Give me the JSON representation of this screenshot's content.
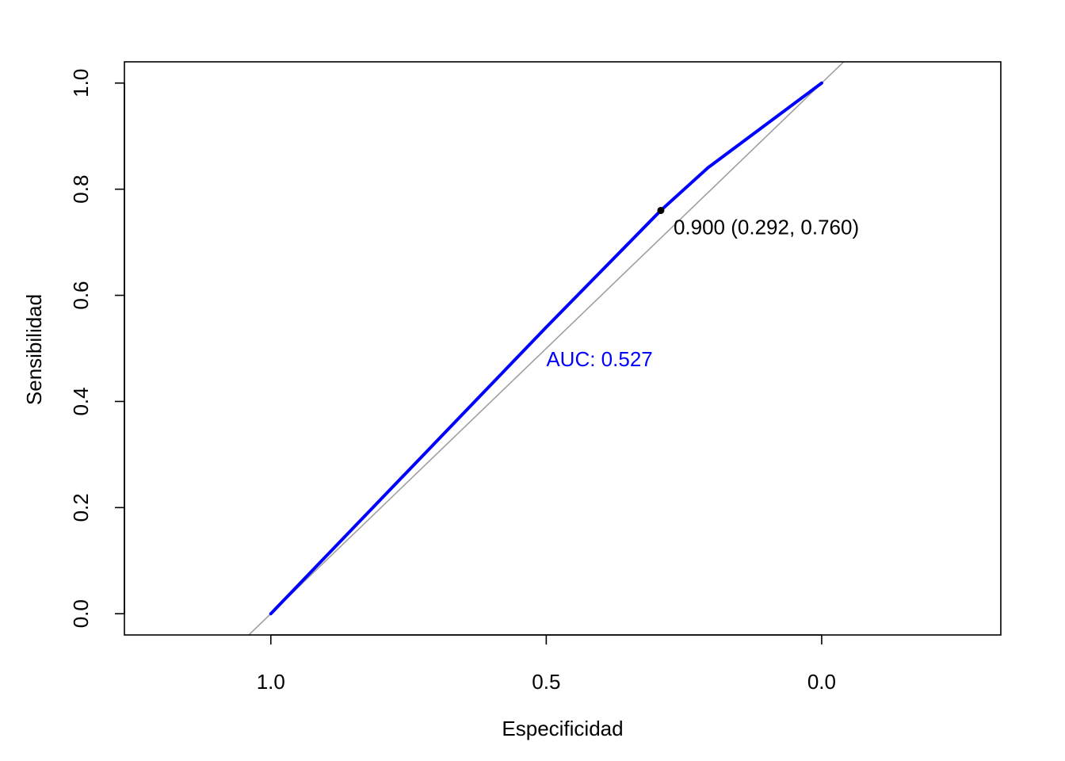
{
  "chart_data": {
    "type": "line",
    "xlabel": "Especificidad",
    "ylabel": "Sensibilidad",
    "xlim": [
      1.2658,
      -0.3252
    ],
    "ylim": [
      -0.04,
      1.04
    ],
    "x_reversed": true,
    "x_ticks": [
      1.0,
      0.5,
      0.0
    ],
    "x_tick_labels": [
      "1.0",
      "0.5",
      "0.0"
    ],
    "y_ticks": [
      0.0,
      0.2,
      0.4,
      0.6,
      0.8,
      1.0
    ],
    "y_tick_labels": [
      "0.0",
      "0.2",
      "0.4",
      "0.6",
      "0.8",
      "1.0"
    ],
    "grid": false,
    "series": [
      {
        "type": "line",
        "color": "#0000ff",
        "points": [
          {
            "x": 1.0,
            "y": 0.0
          },
          {
            "x": 0.5,
            "y": 0.54
          },
          {
            "x": 0.292,
            "y": 0.76
          },
          {
            "x": 0.207,
            "y": 0.84
          },
          {
            "x": 0.0,
            "y": 1.0
          }
        ]
      }
    ],
    "reference_line": {
      "color": "#a0a0a0",
      "from": {
        "x": 1.0,
        "y": 0.0
      },
      "to": {
        "x": 0.0,
        "y": 1.0
      }
    },
    "best_point": {
      "x": 0.292,
      "y": 0.76,
      "label": "0.900 (0.292, 0.760)",
      "color": "#000000"
    },
    "auc_label": {
      "text": "AUC: 0.527",
      "x": 0.5,
      "y": 0.48,
      "color": "#0000ff"
    }
  }
}
